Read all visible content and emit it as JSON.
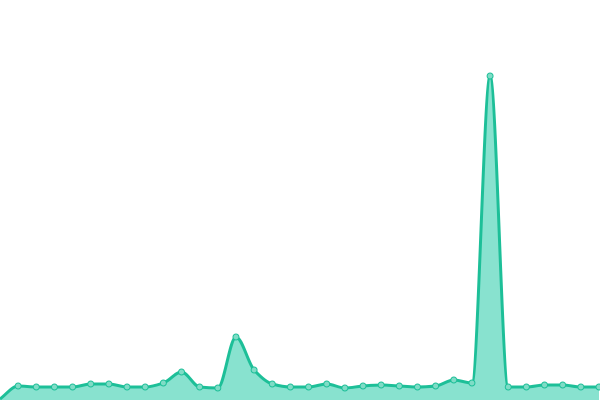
{
  "chart_data": {
    "type": "area",
    "title": "",
    "xlabel": "",
    "ylabel": "",
    "x": [
      0,
      1,
      2,
      3,
      4,
      5,
      6,
      7,
      8,
      9,
      10,
      11,
      12,
      13,
      14,
      15,
      16,
      17,
      18,
      19,
      20,
      21,
      22,
      23,
      24,
      25,
      26,
      27,
      28,
      29,
      30,
      31,
      32,
      33
    ],
    "values": [
      1,
      14,
      13,
      13,
      13,
      16,
      16,
      13,
      13,
      17,
      28,
      13,
      12,
      63,
      30,
      16,
      13,
      13,
      16,
      12,
      14,
      15,
      14,
      13,
      14,
      20,
      17,
      324,
      13,
      13,
      15,
      15,
      13,
      13
    ],
    "ylim": [
      0,
      400
    ],
    "grid": false,
    "axes_visible": false,
    "colors": {
      "line": "#1dbf98",
      "fill": "#88e2cf",
      "marker": "#7fdcc6"
    }
  }
}
